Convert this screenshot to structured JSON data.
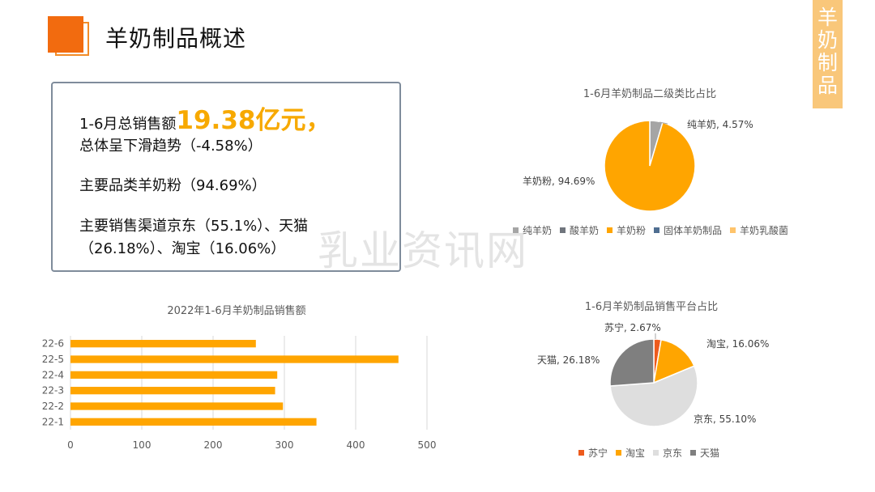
{
  "page": {
    "title": "羊奶制品概述",
    "side_tab": [
      "羊",
      "奶",
      "制",
      "品"
    ],
    "watermark": "乳业资讯网"
  },
  "summary": {
    "line1_prefix": "1-6月总销售额",
    "line1_highlight": "19.38亿元，",
    "line2": "总体呈下滑趋势（-4.58%）",
    "line3": "主要品类羊奶粉（94.69%）",
    "line4": "主要销售渠道京东（55.1%）、天猫",
    "line5": "（26.18%）、淘宝（16.06%）"
  },
  "chart_data": [
    {
      "type": "bar",
      "orientation": "horizontal",
      "title": "2022年1-6月羊奶制品销售额",
      "categories": [
        "22-1",
        "22-2",
        "22-3",
        "22-4",
        "22-5",
        "22-6"
      ],
      "values": [
        345,
        298,
        287,
        290,
        460,
        260
      ],
      "xlim": [
        0,
        500
      ],
      "xticks": [
        0,
        100,
        200,
        300,
        400,
        500
      ],
      "grid": true,
      "color": "#FFA500"
    },
    {
      "type": "pie",
      "title": "1-6月羊奶制品二级类比占比",
      "labels": [
        "纯羊奶",
        "酸羊奶",
        "羊奶粉",
        "固体羊奶制品",
        "羊奶乳酸菌"
      ],
      "values": [
        4.57,
        0,
        94.69,
        0,
        0
      ],
      "colors": [
        "#A5A5A5",
        "#70757D",
        "#FFA500",
        "#4F6E91",
        "#FFC46B"
      ],
      "data_labels": [
        {
          "text": "纯羊奶, 4.57%"
        },
        {
          "text": "羊奶粉, 94.69%"
        }
      ],
      "legend_position": "bottom"
    },
    {
      "type": "pie",
      "title": "1-6月羊奶制品销售平台占比",
      "labels": [
        "苏宁",
        "淘宝",
        "京东",
        "天猫"
      ],
      "values": [
        2.67,
        16.06,
        55.1,
        26.18
      ],
      "colors": [
        "#ED5B1D",
        "#FFA500",
        "#DEDEDE",
        "#7F7F7F"
      ],
      "data_labels": [
        {
          "text": "苏宁, 2.67%"
        },
        {
          "text": "淘宝, 16.06%"
        },
        {
          "text": "京东, 55.10%"
        },
        {
          "text": "天猫, 26.18%"
        }
      ],
      "legend_position": "bottom"
    }
  ]
}
